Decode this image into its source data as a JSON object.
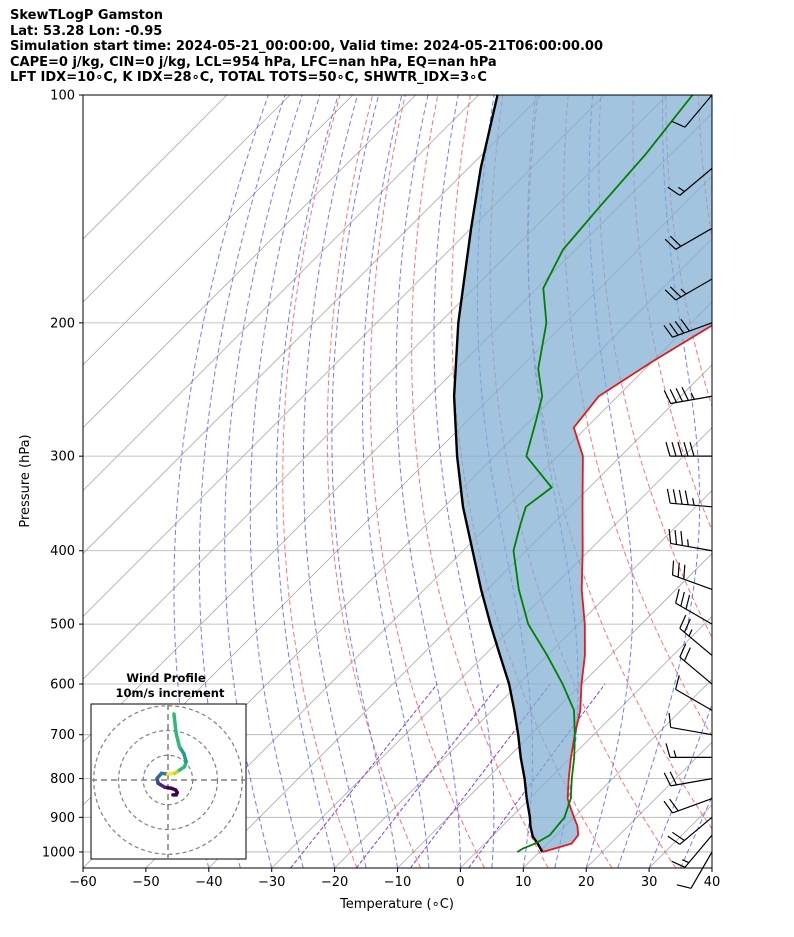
{
  "header": {
    "line1": "SkewTLogP Gamston",
    "line2": "Lat: 53.28   Lon: -0.95",
    "line3": "Simulation start time: 2024-05-21_00:00:00, Valid time: 2024-05-21T06:00:00.00",
    "line4": "CAPE=0 j/kg, CIN=0 j/kg, LCL=954 hPa, LFC=nan hPa, EQ=nan hPa",
    "line5": "LFT IDX=10∘C, K IDX=28∘C, TOTAL TOTS=50∘C, SHWTR_IDX=3∘C"
  },
  "chart_data": {
    "type": "line",
    "title": "SkewTLogP Gamston",
    "xlabel": "Temperature (∘C)",
    "ylabel": "Pressure (hPa)",
    "xlim": [
      -60,
      40
    ],
    "ylim": [
      1050,
      100
    ],
    "y_scale": "log",
    "skew": "isotherms drawn 45 degrees",
    "x_ticks": [
      -60,
      -50,
      -40,
      -30,
      -20,
      -10,
      0,
      10,
      20,
      30,
      40
    ],
    "y_ticks": [
      100,
      200,
      300,
      400,
      500,
      600,
      700,
      800,
      900,
      1000
    ],
    "grid": true,
    "colors": {
      "temperature": "#e41a1c",
      "dewpoint": "#008000",
      "parcel": "#000000",
      "cape_fill": "#7fadd3",
      "isotherm": "#a8a8a8",
      "dry_adiabat": "#ff5a5a",
      "moist_adiabat": "#4a5cff",
      "mixing_ratio": "#8c3cd8"
    },
    "series": [
      {
        "name": "",
        "key": "temperature",
        "pressure": [
          1000,
          975,
          950,
          925,
          900,
          875,
          850,
          800,
          750,
          700,
          650,
          600,
          550,
          500,
          450,
          400,
          350,
          300,
          275,
          250,
          225,
          200,
          175,
          150,
          125,
          100
        ],
        "values": [
          10.5,
          13.8,
          13.5,
          12.0,
          10.0,
          8.0,
          6.0,
          3.0,
          0.0,
          -3.0,
          -6.0,
          -10.0,
          -14.0,
          -19.0,
          -25.0,
          -31.0,
          -38.0,
          -46.0,
          -52.0,
          -53.0,
          -50.0,
          -46.0,
          -46.0,
          -45.0,
          -43.5,
          -43.0
        ]
      },
      {
        "name": "",
        "key": "dewpoint",
        "pressure": [
          1000,
          990,
          975,
          950,
          900,
          850,
          800,
          750,
          700,
          650,
          600,
          550,
          500,
          450,
          400,
          370,
          350,
          330,
          300,
          270,
          250,
          230,
          200,
          180,
          160,
          140,
          120,
          100
        ],
        "values": [
          6.5,
          6.8,
          8.0,
          9.0,
          8.5,
          6.5,
          3.5,
          0.5,
          -3.0,
          -7.0,
          -13.0,
          -20.0,
          -28.0,
          -35.0,
          -42.0,
          -45.0,
          -47.0,
          -46.0,
          -55.0,
          -59.0,
          -62.0,
          -67.0,
          -73.0,
          -79.0,
          -82.0,
          -83.0,
          -84.0,
          -86.0
        ]
      },
      {
        "name": "",
        "key": "parcel",
        "pressure": [
          1000,
          975,
          954,
          925,
          900,
          850,
          800,
          750,
          700,
          650,
          600,
          550,
          500,
          450,
          400,
          350,
          300,
          250,
          200,
          150,
          125,
          100
        ],
        "values": [
          10.5,
          8.4,
          6.5,
          4.5,
          3.0,
          -0.5,
          -4.0,
          -8.0,
          -12.0,
          -16.5,
          -21.5,
          -27.5,
          -34.0,
          -41.0,
          -48.5,
          -57.0,
          -66.0,
          -76.0,
          -87.0,
          -100.0,
          -108.0,
          -117.0
        ]
      }
    ],
    "wind_barbs": {
      "pressure": [
        1000,
        950,
        900,
        850,
        800,
        750,
        700,
        650,
        600,
        550,
        500,
        450,
        400,
        350,
        300,
        250,
        200,
        175,
        150,
        125,
        100
      ],
      "speed_kt": [
        10,
        15,
        20,
        20,
        20,
        15,
        10,
        10,
        20,
        25,
        30,
        30,
        35,
        45,
        50,
        45,
        40,
        25,
        20,
        15,
        10
      ],
      "direction_deg": [
        210,
        220,
        230,
        250,
        260,
        270,
        280,
        300,
        310,
        310,
        300,
        290,
        280,
        275,
        270,
        260,
        250,
        240,
        240,
        230,
        220
      ]
    },
    "hodograph": {
      "title": "Wind Profile",
      "subtitle": "10m/s increment",
      "ring_increment_ms": 10,
      "u": [
        1.5,
        2.5,
        2.8,
        2.3,
        1.0,
        -1.0,
        -3.0,
        -3.3,
        -2.0,
        0.0,
        2.0,
        3.5,
        5.0,
        5.5,
        4.8,
        3.5,
        3.0,
        2.5,
        2.2,
        1.8
      ],
      "v": [
        -4.5,
        -4.5,
        -3.8,
        -3.0,
        -2.5,
        -2.2,
        -1.0,
        0.5,
        2.0,
        1.8,
        2.0,
        3.0,
        4.0,
        5.5,
        8.0,
        10.0,
        12.0,
        14.0,
        16.5,
        20.0
      ]
    },
    "axis_labels_text": {
      "x": "Temperature (∘C)",
      "y": "Pressure (hPa)"
    }
  }
}
